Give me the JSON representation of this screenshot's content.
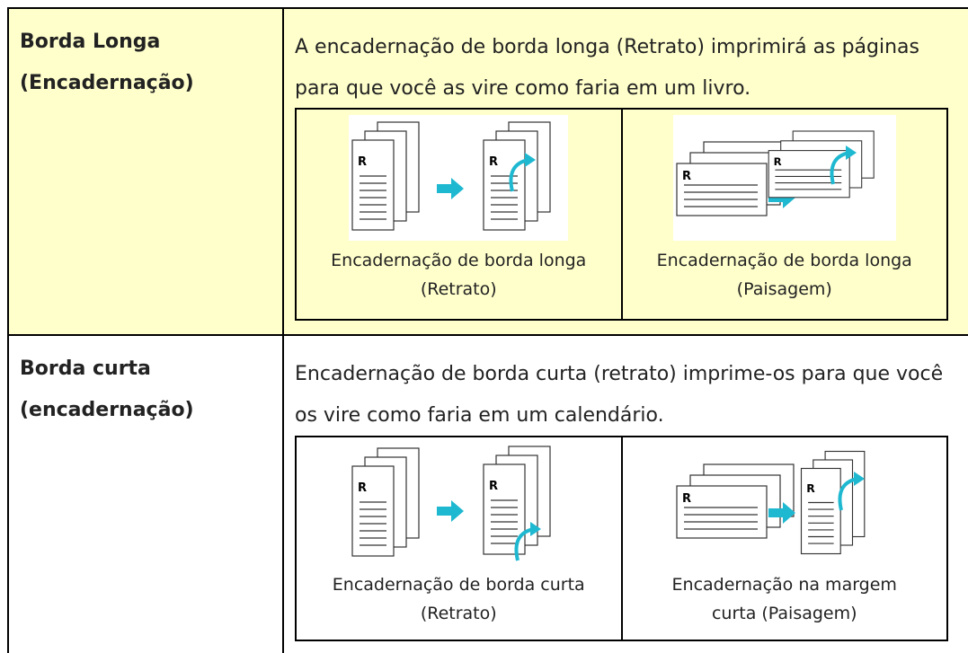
{
  "table": {
    "rows": [
      {
        "label": "Borda Longa (Encadernação)",
        "description": "A encadernação de borda longa (Retrato) imprimirá as páginas para que você as vire como faria em um livro.",
        "figures": [
          {
            "caption": "Encadernação de borda longa (Retrato)"
          },
          {
            "caption": "Encadernação de borda longa (Paisagem)"
          }
        ]
      },
      {
        "label": "Borda curta (encadernação)",
        "description": "Encadernação de borda curta (retrato) imprime-os para que você os vire como faria em um calendário.",
        "figures": [
          {
            "caption": "Encadernação de borda curta (Retrato)"
          },
          {
            "caption": "Encadernação na margem curta (Paisagem)"
          }
        ]
      }
    ]
  }
}
